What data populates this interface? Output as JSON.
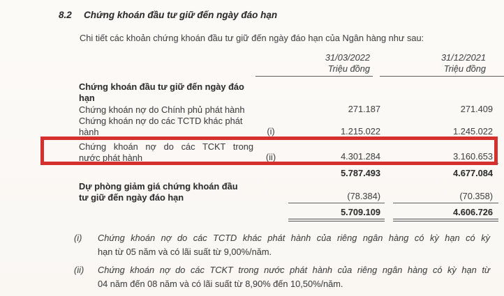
{
  "section": {
    "number": "8.2",
    "title": "Chứng khoán đầu tư giữ đến ngày đáo hạn",
    "intro": "Chi tiết các khoản chứng khoán đầu tư giữ đến ngày đáo hạn của Ngân hàng như sau:"
  },
  "table": {
    "columns": [
      {
        "date": "31/03/2022",
        "unit": "Triệu đồng"
      },
      {
        "date": "31/12/2021",
        "unit": "Triệu đồng"
      }
    ],
    "rows": [
      {
        "label1": "Chứng khoán đầu tư giữ đến ngày đáo",
        "label2": "hạn",
        "ref": "",
        "v1": "",
        "v2": ""
      },
      {
        "label1": "Chứng khoán nợ do Chính phủ phát hành",
        "label2": "",
        "ref": "",
        "v1": "271.187",
        "v2": "271.409"
      },
      {
        "label1": "Chứng khoán nợ do các TCTD khác phát",
        "label2": "hành",
        "ref": "(i)",
        "v1": "1.215.022",
        "v2": "1.245.022"
      },
      {
        "label1": "Chứng khoán nợ do các TCKT trong",
        "label2": "nước phát hành",
        "ref": "(ii)",
        "v1": "4.301.284",
        "v2": "3.160.653"
      },
      {
        "label1": "",
        "label2": "",
        "ref": "",
        "v1": "5.787.493",
        "v2": "4.677.084"
      },
      {
        "label1": "Dự phòng giảm giá chứng khoán đầu",
        "label2": "tư giữ đến ngày đáo hạn",
        "ref": "",
        "v1": "(78.384)",
        "v2": "(70.358)"
      },
      {
        "label1": "",
        "label2": "",
        "ref": "",
        "v1": "5.709.109",
        "v2": "4.606.726"
      }
    ]
  },
  "footnotes": [
    {
      "marker": "(i)",
      "line1": "Chứng khoán nợ do các TCTD khác phát hành của riêng ngân hàng có kỳ hạn có kỳ",
      "line2": "hạn từ 05 năm và có lãi suất từ 9,00%/năm."
    },
    {
      "marker": "(ii)",
      "line1": "Chứng khoán nợ do các TCKT trong nước phát hành của riêng ngân hàng có kỳ hạn từ",
      "line2": "04 năm đến 08 năm và có lãi suất từ 8,90% đến 10,50%/năm."
    }
  ],
  "highlight": {
    "color": "#d5302d",
    "highlighted_row": "Chứng khoán nợ do các TCKT trong nước phát hành"
  }
}
